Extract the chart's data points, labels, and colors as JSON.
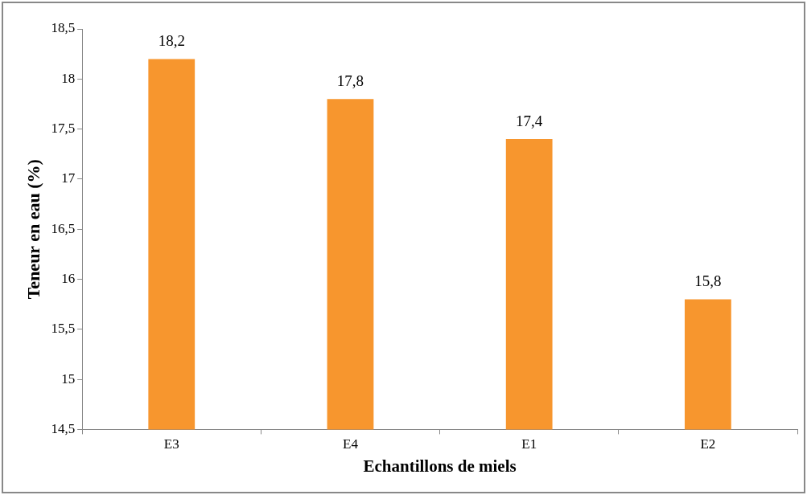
{
  "chart_data": {
    "type": "bar",
    "xlabel": "Echantillons de miels",
    "ylabel": "Teneur en eau (%)",
    "categories": [
      "E3",
      "E4",
      "E1",
      "E2"
    ],
    "values": [
      18.2,
      17.8,
      17.4,
      15.8
    ],
    "value_labels": [
      "18,2",
      "17,8",
      "17,4",
      "15,8"
    ],
    "color": "#f7962e",
    "ylim": [
      14.5,
      18.5
    ],
    "yticks": [
      {
        "value": 14.5,
        "label": "14,5"
      },
      {
        "value": 15,
        "label": "15"
      },
      {
        "value": 15.5,
        "label": "15,5"
      },
      {
        "value": 16,
        "label": "16"
      },
      {
        "value": 16.5,
        "label": "16,5"
      },
      {
        "value": 17,
        "label": "17"
      },
      {
        "value": 17.5,
        "label": "17,5"
      },
      {
        "value": 18,
        "label": "18"
      },
      {
        "value": 18.5,
        "label": "18,5"
      }
    ],
    "grid": false,
    "legend": false
  }
}
